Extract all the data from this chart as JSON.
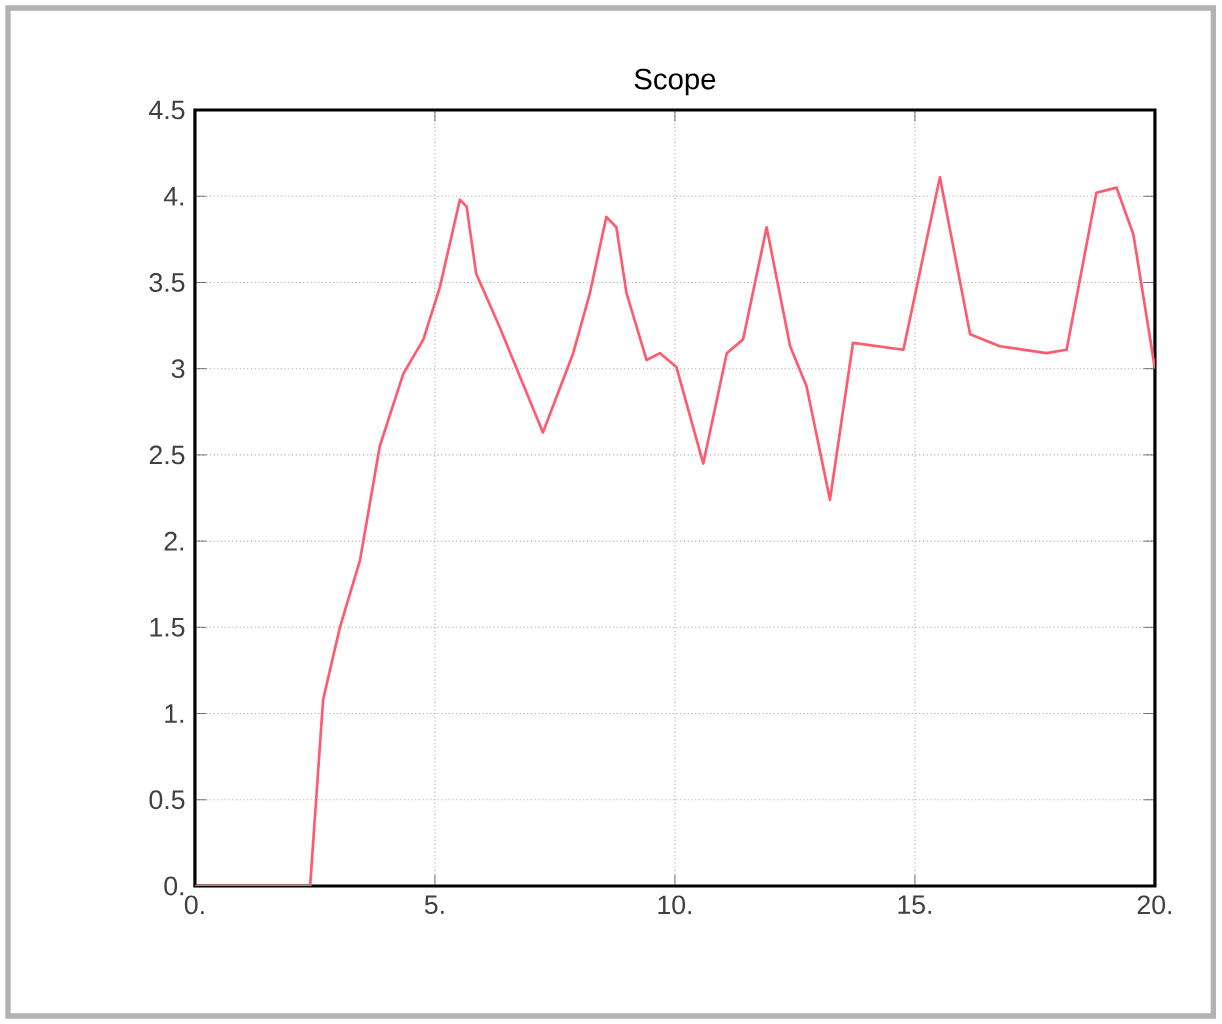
{
  "chart_data": {
    "type": "line",
    "title": "Scope",
    "x": [
      0,
      2.4,
      2.67,
      3.02,
      3.44,
      3.85,
      4.34,
      4.76,
      5.1,
      5.52,
      5.66,
      5.86,
      6.35,
      7.25,
      7.88,
      8.23,
      8.57,
      8.78,
      8.99,
      9.41,
      9.69,
      10.03,
      10.59,
      11.08,
      11.42,
      11.91,
      12.4,
      12.74,
      13.23,
      13.71,
      14.76,
      15.52,
      16.15,
      16.77,
      17.74,
      18.16,
      18.78,
      19.2,
      19.55,
      20
    ],
    "series": [
      {
        "color": "#ff5a6e",
        "values": [
          0,
          0,
          1.08,
          1.5,
          1.89,
          2.55,
          2.97,
          3.17,
          3.47,
          3.98,
          3.94,
          3.55,
          3.24,
          2.63,
          3.09,
          3.44,
          3.88,
          3.82,
          3.44,
          3.05,
          3.09,
          3.01,
          2.45,
          3.09,
          3.17,
          3.82,
          3.13,
          2.9,
          2.24,
          3.15,
          3.11,
          4.11,
          3.2,
          3.13,
          3.09,
          3.11,
          4.02,
          4.05,
          3.78,
          3.0
        ]
      }
    ],
    "xlim": [
      0,
      20
    ],
    "xticks": [
      {
        "value": 0,
        "label": "0."
      },
      {
        "value": 5,
        "label": "5."
      },
      {
        "value": 10,
        "label": "10."
      },
      {
        "value": 15,
        "label": "15."
      },
      {
        "value": 20,
        "label": "20."
      }
    ],
    "ylim": [
      0,
      4.5
    ],
    "yticks": [
      {
        "value": 0,
        "label": "0."
      },
      0.5,
      {
        "value": 1,
        "label": "1."
      },
      1.5,
      {
        "value": 2,
        "label": "2."
      },
      2.5,
      3,
      3.5,
      {
        "value": 4,
        "label": "4."
      },
      4.5
    ],
    "grid": true
  }
}
